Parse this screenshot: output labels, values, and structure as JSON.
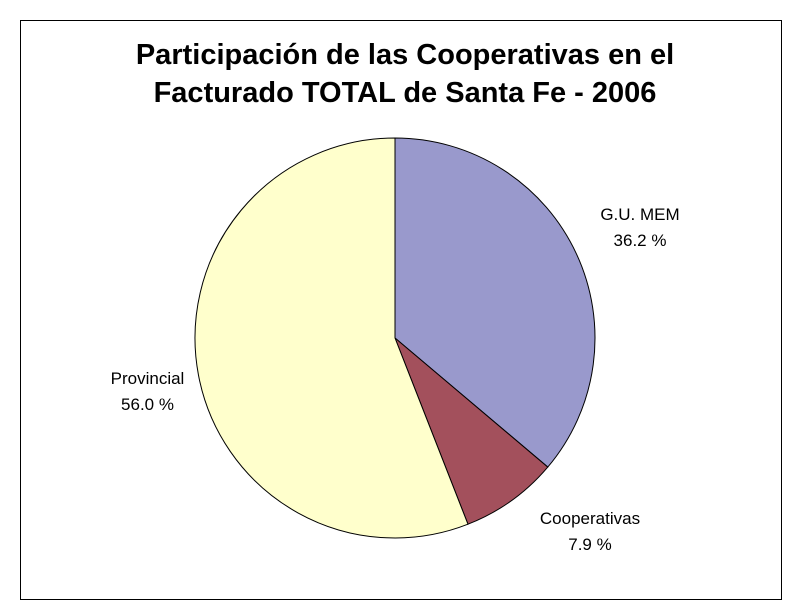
{
  "chart_data": {
    "type": "pie",
    "title": "Participación de las Cooperativas en el Facturado TOTAL de Santa Fe - 2006",
    "categories": [
      "G.U. MEM",
      "Cooperativas",
      "Provincial"
    ],
    "values": [
      36.2,
      7.9,
      56.0
    ],
    "value_labels": [
      "36.2 %",
      "7.9 %",
      "56.0 %"
    ],
    "colors": [
      "#9999cc",
      "#a3505c",
      "#ffffcc"
    ]
  }
}
